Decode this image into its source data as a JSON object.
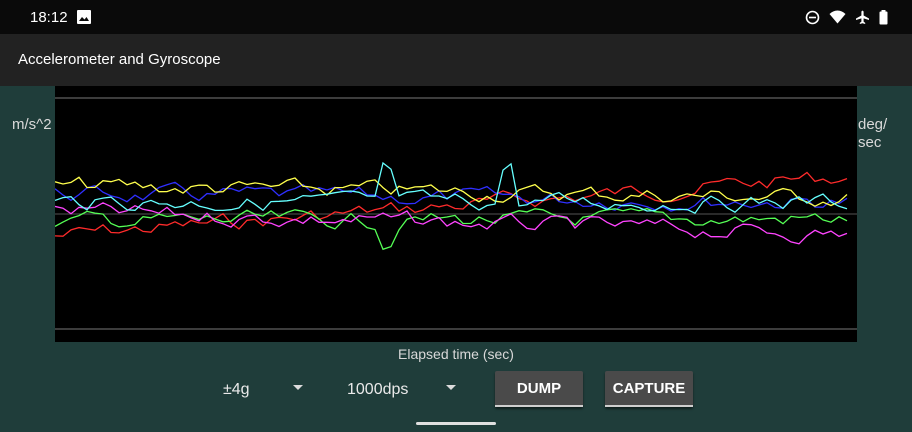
{
  "status_bar": {
    "time": "18:12",
    "icons": [
      "photo-icon",
      "do-not-disturb-icon",
      "wifi-icon",
      "airplane-mode-icon",
      "battery-icon"
    ]
  },
  "app_bar": {
    "title": "Accelerometer and Gyroscope"
  },
  "plot": {
    "left_unit": "m/s^2",
    "right_unit_line1": "deg/",
    "right_unit_line2": "sec",
    "xlabel": "Elapsed time (sec)",
    "series_colors": [
      "#ff2b2b",
      "#2f2fff",
      "#ffff4d",
      "#55ff55",
      "#ff44ff",
      "#66ffff"
    ]
  },
  "controls": {
    "accel_range": "±4g",
    "gyro_range": "1000dps",
    "dump_label": "DUMP",
    "capture_label": "CAPTURE"
  }
}
